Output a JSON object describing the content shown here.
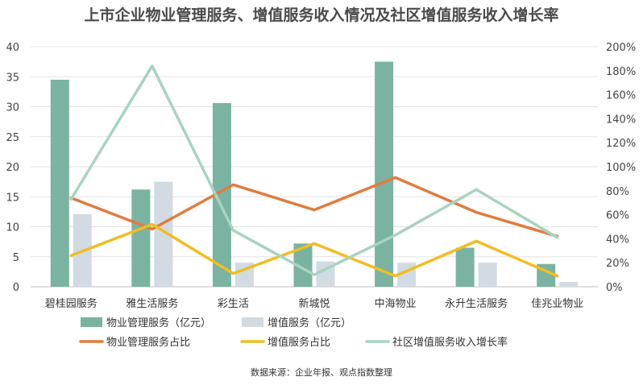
{
  "source_note": "数据来源：企业年报、观点指数整理",
  "chart_data": {
    "type": "bar",
    "title": "上市企业物业管理服务、增值服务收入情况及社区增值服务收入增长率",
    "categories": [
      "碧桂园服务",
      "雅生活服务",
      "彩生活",
      "新城悦",
      "中海物业",
      "永升生活服务",
      "佳兆业物业"
    ],
    "y_left": {
      "ticks": [
        "0",
        "5",
        "10",
        "15",
        "20",
        "25",
        "30",
        "35",
        "40"
      ],
      "ylim": [
        0,
        40
      ]
    },
    "y_right": {
      "ticks": [
        "0%",
        "20%",
        "40%",
        "60%",
        "80%",
        "100%",
        "120%",
        "140%",
        "160%",
        "180%",
        "200%"
      ],
      "ylim": [
        0,
        200
      ]
    },
    "grid": true,
    "legend_position": "bottom",
    "bar_series": [
      {
        "name": "物业管理服务（亿元）",
        "color": "#7ab3a2",
        "values": [
          34.5,
          16.2,
          30.6,
          7.2,
          37.5,
          6.5,
          3.8
        ]
      },
      {
        "name": "增值服务（亿元）",
        "color": "#d1dbe1",
        "values": [
          12.1,
          17.5,
          4.0,
          4.2,
          4.0,
          4.0,
          0.8
        ]
      }
    ],
    "line_series": [
      {
        "name": "物业管理服务占比",
        "color": "#e07c3e",
        "values": [
          74,
          48,
          85,
          64,
          91,
          62,
          42
        ]
      },
      {
        "name": "增值服务占比",
        "color": "#f2bd22",
        "values": [
          26,
          52,
          11,
          36,
          9,
          38,
          9
        ]
      },
      {
        "name": "社区增值服务收入增长率",
        "color": "#a9d3c2",
        "values": [
          73,
          184,
          47,
          10,
          43,
          81,
          41
        ]
      }
    ]
  }
}
